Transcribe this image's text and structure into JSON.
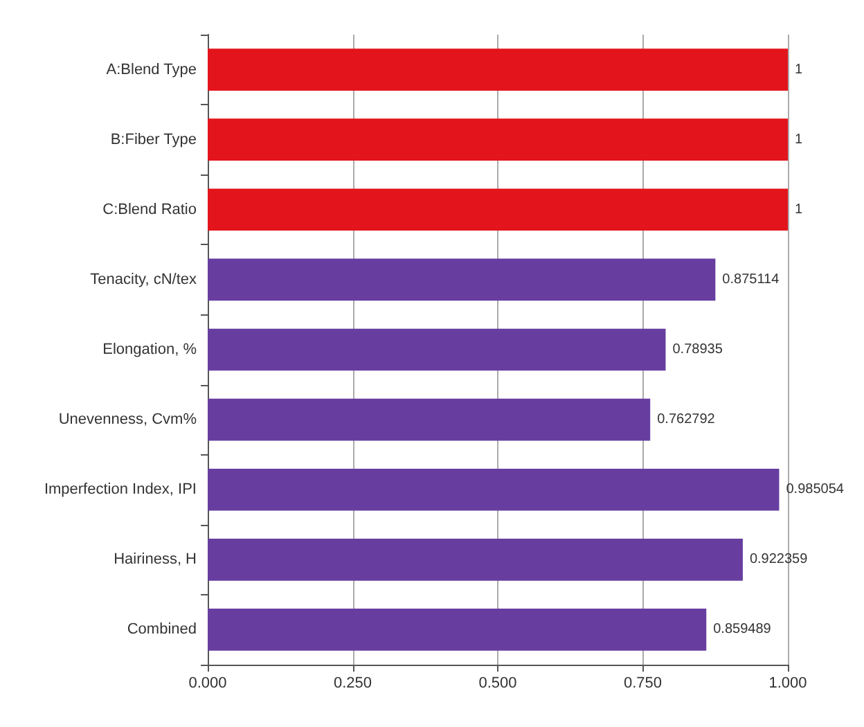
{
  "chart_data": {
    "type": "bar",
    "orientation": "horizontal",
    "categories": [
      "A:Blend Type",
      "B:Fiber Type",
      "C:Blend Ratio",
      "Tenacity, cN/tex",
      "Elongation, %",
      "Unevenness, Cvm%",
      "Imperfection Index, IPI",
      "Hairiness, H",
      "Combined"
    ],
    "values": [
      1,
      1,
      1,
      0.875114,
      0.78935,
      0.762792,
      0.985054,
      0.922359,
      0.859489
    ],
    "colors": [
      "#e3141b",
      "#e3141b",
      "#e3141b",
      "#673ea0",
      "#673ea0",
      "#673ea0",
      "#673ea0",
      "#673ea0",
      "#673ea0"
    ],
    "xlim": [
      0,
      1
    ],
    "xticks": [
      {
        "value": 0,
        "label": "0.000"
      },
      {
        "value": 0.25,
        "label": "0.250"
      },
      {
        "value": 0.5,
        "label": "0.500"
      },
      {
        "value": 0.75,
        "label": "0.750"
      },
      {
        "value": 1,
        "label": "1.000"
      }
    ],
    "grid": "x",
    "data_labels": true
  }
}
